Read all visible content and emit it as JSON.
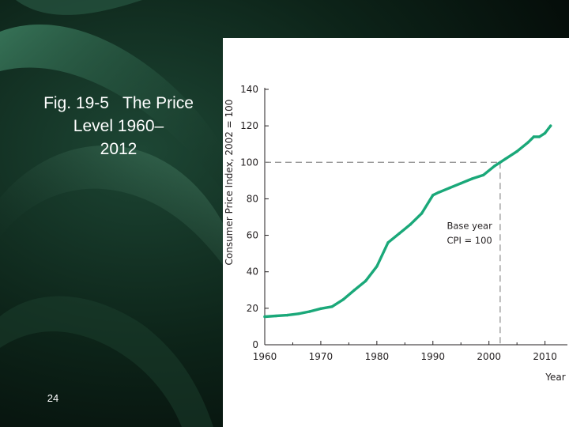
{
  "slide": {
    "title_line1": "Fig. 19-5   The Price",
    "title_line2": "Level 1960–",
    "title_line3": "2012",
    "page_number": "24"
  },
  "colors": {
    "background_dark": "#07180f",
    "background_swirl": "#2f6a4e",
    "line": "#1aa879",
    "axis": "#231f20",
    "reference_dash": "#8c8c8c"
  },
  "chart_data": {
    "type": "line",
    "title": "",
    "xlabel": "Year",
    "ylabel": "Consumer Price Index, 2002 = 100",
    "xlim": [
      1960,
      2014
    ],
    "ylim": [
      0,
      140
    ],
    "x_ticks": [
      1960,
      1970,
      1980,
      1990,
      2000,
      2010
    ],
    "y_ticks": [
      0,
      20,
      40,
      60,
      80,
      100,
      120,
      140
    ],
    "grid": false,
    "series": [
      {
        "x": [
          1960,
          1962,
          1964,
          1966,
          1968,
          1970,
          1972,
          1974,
          1976,
          1978,
          1980,
          1982,
          1984,
          1986,
          1988,
          1990,
          1991,
          1993,
          1995,
          1997,
          1999,
          2001,
          2002,
          2003,
          2005,
          2007,
          2008,
          2009,
          2010,
          2011
        ],
        "y": [
          15.4,
          15.8,
          16.2,
          17.0,
          18.2,
          19.8,
          20.9,
          24.8,
          30.0,
          35.0,
          43.0,
          56.0,
          61.0,
          66.0,
          72.0,
          82.0,
          83.5,
          86.0,
          88.5,
          91.0,
          93.0,
          98.0,
          100,
          102,
          106,
          111,
          114,
          114,
          116,
          120
        ]
      }
    ],
    "reference": {
      "base_year": 2002,
      "base_value": 100,
      "label_line1": "Base year",
      "label_line2": "CPI = 100"
    }
  }
}
